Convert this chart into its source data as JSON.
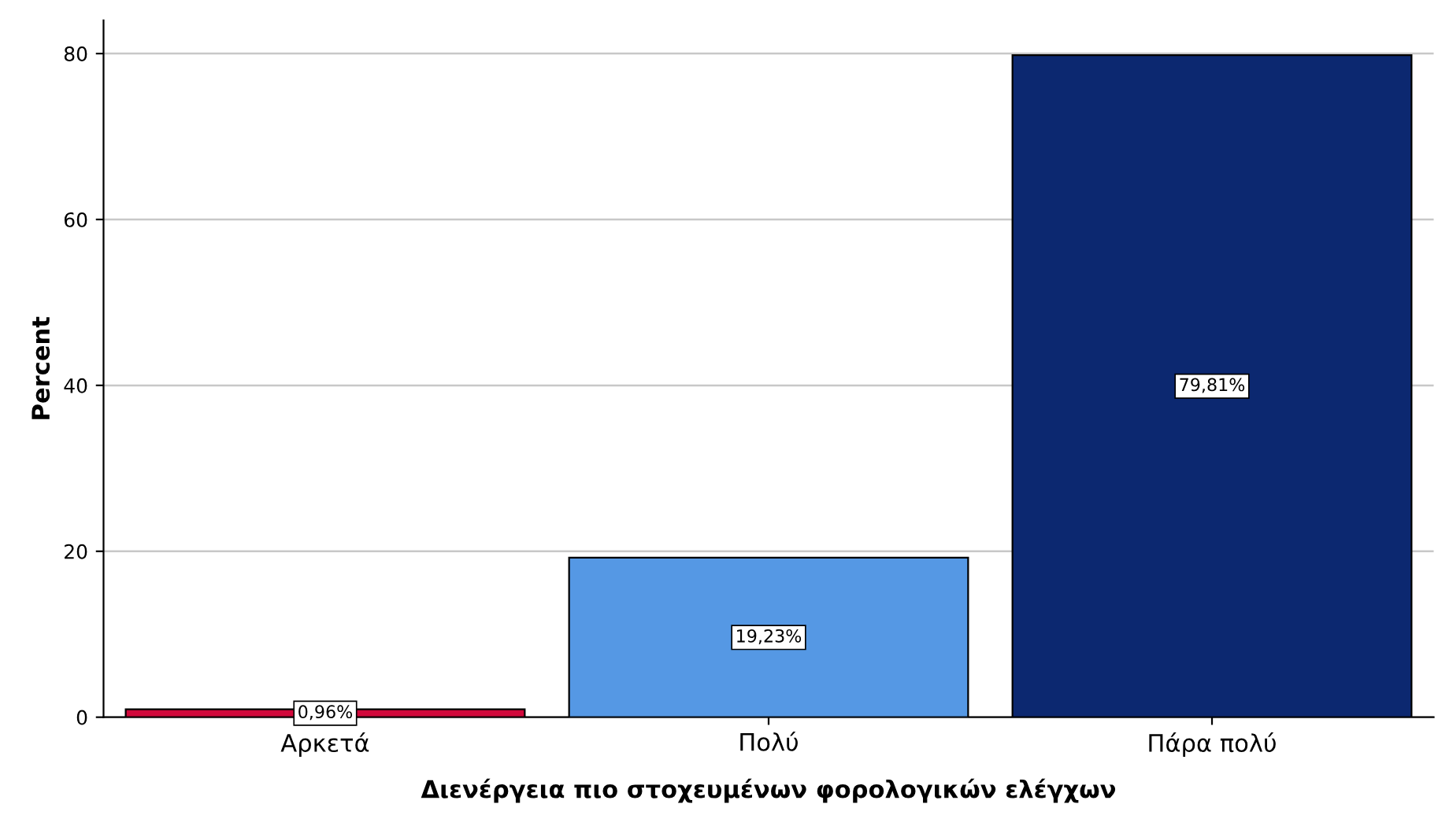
{
  "chart_data": {
    "type": "bar",
    "xlabel": "Διενέργεια πιο στοχευμένων φορολογικών ελέγχων",
    "ylabel": "Percent",
    "categories": [
      "Αρκετά",
      "Πολύ",
      "Πάρα πολύ"
    ],
    "values": [
      0.96,
      19.23,
      79.81
    ],
    "colors": [
      "#d2093c",
      "#5598e4",
      "#0c2870"
    ],
    "value_labels": [
      "0,96%",
      "19,23%",
      "79,81%"
    ],
    "ylim": [
      0,
      84
    ],
    "yticks": [
      0,
      20,
      40,
      60,
      80
    ],
    "grid": "y"
  }
}
